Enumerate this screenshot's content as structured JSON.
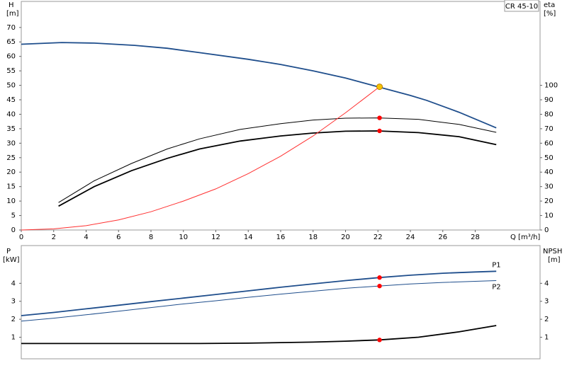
{
  "chart_data": [
    {
      "type": "line",
      "y_label": "H",
      "y_unit": "[m]",
      "y2_label": "eta",
      "y2_unit": "[%]",
      "x_label": "Q [m³/h]",
      "legend_text": "CR 45-10",
      "xlim": [
        0,
        32
      ],
      "xticks": [
        0,
        2,
        4,
        6,
        8,
        10,
        12,
        14,
        16,
        18,
        20,
        22,
        24,
        26,
        28
      ],
      "ylim": [
        0,
        79
      ],
      "yticks": [
        0,
        5,
        10,
        15,
        20,
        25,
        30,
        35,
        40,
        45,
        50,
        55,
        60,
        65,
        70
      ],
      "y2lim": [
        0,
        158
      ],
      "y2ticks": [
        0,
        10,
        20,
        30,
        40,
        50,
        60,
        70,
        80,
        90,
        100
      ],
      "series": [
        {
          "color": "#1f4e8c",
          "width": 1.8,
          "x": [
            0,
            2.5,
            4.5,
            7,
            9,
            11,
            14,
            16,
            18,
            20,
            22,
            24,
            25,
            27,
            29.3
          ],
          "values": [
            64.2,
            64.8,
            64.6,
            63.8,
            62.8,
            61.3,
            59,
            57.2,
            55,
            52.5,
            49.5,
            46.5,
            44.8,
            40.7,
            35.3
          ]
        },
        {
          "color": "#000000",
          "width": 1,
          "axis": "y2",
          "x": [
            2.3,
            4.5,
            6.8,
            9,
            11,
            13.5,
            16,
            18,
            20,
            22,
            24.5,
            27,
            29.3
          ],
          "values": [
            19,
            34,
            46,
            56,
            63,
            69.5,
            73.5,
            76,
            77.3,
            77.5,
            76.5,
            73,
            67.5
          ]
        },
        {
          "color": "#000000",
          "width": 1.8,
          "axis": "y2",
          "x": [
            2.3,
            4.5,
            6.8,
            9,
            11,
            13.5,
            16,
            18,
            20,
            22,
            24.5,
            27,
            29.3
          ],
          "values": [
            16.5,
            30,
            41,
            49.5,
            56,
            61.5,
            65,
            67,
            68.3,
            68.5,
            67.3,
            64.5,
            59
          ]
        },
        {
          "color": "#ff3030",
          "width": 1,
          "x": [
            0,
            2,
            4,
            6,
            8,
            10,
            12,
            14,
            16,
            18,
            20,
            22.1
          ],
          "values": [
            0,
            0.4,
            1.5,
            3.5,
            6.3,
            10,
            14.2,
            19.5,
            25.5,
            32.5,
            40.5,
            49.5
          ]
        }
      ],
      "points": [
        {
          "x": 22.1,
          "y": 49.5,
          "color": "#f5c400"
        },
        {
          "x": 22.1,
          "y": 77.5,
          "axis": "y2",
          "color": "#ff0000"
        },
        {
          "x": 22.1,
          "y": 68.5,
          "axis": "y2",
          "color": "#ff0000"
        }
      ]
    },
    {
      "type": "line",
      "y_label": "P",
      "y_unit": "[kW]",
      "y2_label": "NPSH",
      "y2_unit": "[m]",
      "xlim": [
        0,
        32
      ],
      "ylim": [
        -0.2,
        6.1
      ],
      "yticks": [
        1,
        2,
        3,
        4
      ],
      "y2lim": [
        -0.2,
        6.1
      ],
      "y2ticks": [
        1,
        2,
        3,
        4
      ],
      "series": [
        {
          "name": "P1",
          "color": "#1f4e8c",
          "width": 1.8,
          "x": [
            0,
            2,
            4,
            6,
            8,
            10,
            12,
            14,
            16,
            18,
            20,
            22.1,
            24,
            26,
            28,
            29.3
          ],
          "values": [
            2.2,
            2.38,
            2.58,
            2.78,
            2.98,
            3.18,
            3.38,
            3.58,
            3.78,
            3.97,
            4.15,
            4.32,
            4.45,
            4.56,
            4.63,
            4.67
          ]
        },
        {
          "name": "P2",
          "color": "#1f4e8c",
          "width": 1,
          "x": [
            0,
            2,
            4,
            6,
            8,
            10,
            12,
            14,
            16,
            18,
            20,
            22.1,
            24,
            26,
            28,
            29.3
          ],
          "values": [
            1.9,
            2.06,
            2.25,
            2.45,
            2.65,
            2.85,
            3.03,
            3.22,
            3.4,
            3.56,
            3.72,
            3.85,
            3.96,
            4.05,
            4.11,
            4.15
          ]
        },
        {
          "color": "#000000",
          "width": 1.8,
          "axis": "y2",
          "x": [
            0,
            8,
            11,
            14,
            16,
            18,
            20,
            22.1,
            24.5,
            27,
            29.3
          ],
          "values": [
            0.65,
            0.65,
            0.65,
            0.67,
            0.7,
            0.73,
            0.78,
            0.85,
            1.0,
            1.3,
            1.65
          ]
        }
      ],
      "points": [
        {
          "x": 22.1,
          "y": 4.32,
          "color": "#ff0000"
        },
        {
          "x": 22.1,
          "y": 3.85,
          "color": "#ff0000"
        },
        {
          "x": 22.1,
          "y": 0.85,
          "axis": "y2",
          "color": "#ff0000"
        }
      ]
    }
  ]
}
